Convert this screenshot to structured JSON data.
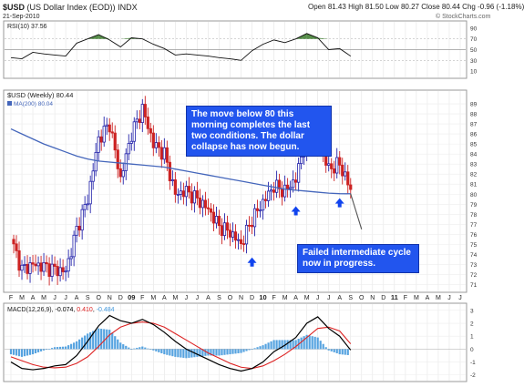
{
  "header": {
    "symbol": "$USD",
    "name": "(US Dollar Index (EOD))",
    "exchange": "INDX",
    "date": "21-Sep-2010",
    "open_label": "Open",
    "open": "81.43",
    "high_label": "High",
    "high": "81.50",
    "low_label": "Low",
    "low": "80.27",
    "close_label": "Close",
    "close": "80.44",
    "chg_label": "Chg",
    "chg": "-0.96 (-1.18%)",
    "watermark": "© StockCharts.com"
  },
  "rsi_panel": {
    "label": "RSI(10) 37.56",
    "ticks": [
      "90",
      "70",
      "50",
      "30",
      "10"
    ]
  },
  "price_panel": {
    "label": "$USD (Weekly) 80.44",
    "ma_label": "MA(200) 80.04",
    "ticks": [
      "89",
      "88",
      "87",
      "86",
      "85",
      "84",
      "83",
      "82",
      "81",
      "80",
      "79",
      "78",
      "77",
      "76",
      "75",
      "74",
      "73",
      "72",
      "71"
    ]
  },
  "macd_panel": {
    "label": "MACD(12,26,9)",
    "macd": "-0.074",
    "signal": "0.410",
    "hist": "-0.484",
    "ticks": [
      "3",
      "2",
      "1",
      "0",
      "-1",
      "-2"
    ]
  },
  "x_axis": {
    "labels": [
      "F",
      "M",
      "A",
      "M",
      "J",
      "J",
      "A",
      "S",
      "O",
      "N",
      "D",
      "09",
      "F",
      "M",
      "A",
      "M",
      "J",
      "J",
      "A",
      "S",
      "O",
      "N",
      "D",
      "10",
      "F",
      "M",
      "A",
      "M",
      "J",
      "J",
      "A",
      "S",
      "O",
      "N",
      "D",
      "11",
      "F",
      "M",
      "A",
      "M",
      "J",
      "J"
    ]
  },
  "annotations": {
    "note_top": "The move below 80 this\nmorning completes the last\ntwo conditions. The dollar\ncollapse has now begun.",
    "note_bottom": "Failed intermediate cycle\nnow in progress."
  },
  "colors": {
    "up": "#2222aa",
    "down": "#cc2222",
    "ma": "#4466bb",
    "macd": "#000000",
    "signal": "#dd2222",
    "hist": "#4499dd",
    "rsi_fill": "#3a7a2a",
    "callout": "#2255ee"
  },
  "chart_data": [
    {
      "type": "line",
      "series_name": "RSI(10)",
      "ylim": [
        0,
        100
      ],
      "reference_lines": [
        70,
        50,
        30
      ],
      "x": [
        "2008-02",
        "2008-03",
        "2008-04",
        "2008-05",
        "2008-06",
        "2008-07",
        "2008-08",
        "2008-09",
        "2008-10",
        "2008-11",
        "2008-12",
        "2009-01",
        "2009-02",
        "2009-03",
        "2009-04",
        "2009-05",
        "2009-06",
        "2009-07",
        "2009-08",
        "2009-09",
        "2009-10",
        "2009-11",
        "2009-12",
        "2010-01",
        "2010-02",
        "2010-03",
        "2010-04",
        "2010-05",
        "2010-06",
        "2010-07",
        "2010-08",
        "2010-09"
      ],
      "values": [
        35,
        33,
        45,
        42,
        40,
        38,
        62,
        70,
        78,
        68,
        55,
        72,
        70,
        60,
        52,
        40,
        42,
        40,
        38,
        35,
        33,
        30,
        48,
        60,
        68,
        63,
        70,
        80,
        72,
        50,
        52,
        38
      ]
    },
    {
      "type": "candlestick",
      "title": "$USD (Weekly) 80.44",
      "ylim": [
        70.5,
        90
      ],
      "x": [
        "2008-02",
        "2008-03",
        "2008-04",
        "2008-05",
        "2008-06",
        "2008-07",
        "2008-08",
        "2008-09",
        "2008-10",
        "2008-11",
        "2008-12",
        "2009-01",
        "2009-02",
        "2009-03",
        "2009-04",
        "2009-05",
        "2009-06",
        "2009-07",
        "2009-08",
        "2009-09",
        "2009-10",
        "2009-11",
        "2009-12",
        "2010-01",
        "2010-02",
        "2010-03",
        "2010-04",
        "2010-05",
        "2010-06",
        "2010-07",
        "2010-08",
        "2010-09"
      ],
      "close": [
        75.5,
        72.5,
        73.0,
        72.8,
        72.5,
        72.3,
        76.5,
        79.5,
        85.5,
        87.0,
        81.5,
        86.0,
        88.5,
        85.0,
        84.0,
        80.0,
        80.3,
        79.5,
        78.5,
        76.8,
        76.2,
        75.0,
        77.5,
        79.2,
        80.8,
        80.3,
        81.5,
        86.0,
        85.5,
        82.5,
        83.0,
        80.44
      ],
      "ma200_label": "MA(200) 80.04",
      "ma200": [
        86.5,
        86.0,
        85.5,
        85.0,
        84.6,
        84.2,
        83.8,
        83.5,
        83.3,
        83.2,
        83.1,
        83.0,
        82.9,
        82.8,
        82.7,
        82.5,
        82.3,
        82.1,
        81.9,
        81.7,
        81.5,
        81.3,
        81.1,
        80.9,
        80.7,
        80.5,
        80.4,
        80.3,
        80.2,
        80.1,
        80.05,
        80.04
      ],
      "projection": [
        {
          "x": "2010-09",
          "y": 80.04
        },
        {
          "x": "2010-10",
          "y": 76.5
        }
      ],
      "markers": [
        {
          "x": "2009-12",
          "y": 73.7
        },
        {
          "x": "2010-04",
          "y": 78.8
        },
        {
          "x": "2010-08",
          "y": 79.6
        }
      ]
    },
    {
      "type": "line",
      "series_name": "MACD(12,26,9)",
      "ylim": [
        -2.3,
        3.2
      ],
      "x": [
        "2008-02",
        "2008-03",
        "2008-04",
        "2008-05",
        "2008-06",
        "2008-07",
        "2008-08",
        "2008-09",
        "2008-10",
        "2008-11",
        "2008-12",
        "2009-01",
        "2009-02",
        "2009-03",
        "2009-04",
        "2009-05",
        "2009-06",
        "2009-07",
        "2009-08",
        "2009-09",
        "2009-10",
        "2009-11",
        "2009-12",
        "2010-01",
        "2010-02",
        "2010-03",
        "2010-04",
        "2010-05",
        "2010-06",
        "2010-07",
        "2010-08",
        "2010-09"
      ],
      "macd": [
        -1.0,
        -1.5,
        -1.6,
        -1.5,
        -1.3,
        -1.2,
        -0.5,
        0.6,
        1.8,
        2.6,
        2.2,
        2.0,
        2.3,
        1.9,
        1.3,
        0.6,
        0.0,
        -0.4,
        -0.8,
        -1.2,
        -1.5,
        -1.7,
        -1.5,
        -1.0,
        -0.2,
        0.3,
        0.9,
        2.0,
        2.5,
        1.6,
        1.0,
        -0.074
      ],
      "signal": [
        -0.6,
        -0.9,
        -1.2,
        -1.4,
        -1.45,
        -1.4,
        -1.1,
        -0.6,
        0.2,
        1.1,
        1.7,
        2.0,
        2.1,
        2.0,
        1.7,
        1.2,
        0.7,
        0.2,
        -0.3,
        -0.7,
        -1.1,
        -1.4,
        -1.5,
        -1.3,
        -0.9,
        -0.4,
        0.2,
        0.9,
        1.6,
        1.7,
        1.4,
        0.41
      ]
    }
  ]
}
